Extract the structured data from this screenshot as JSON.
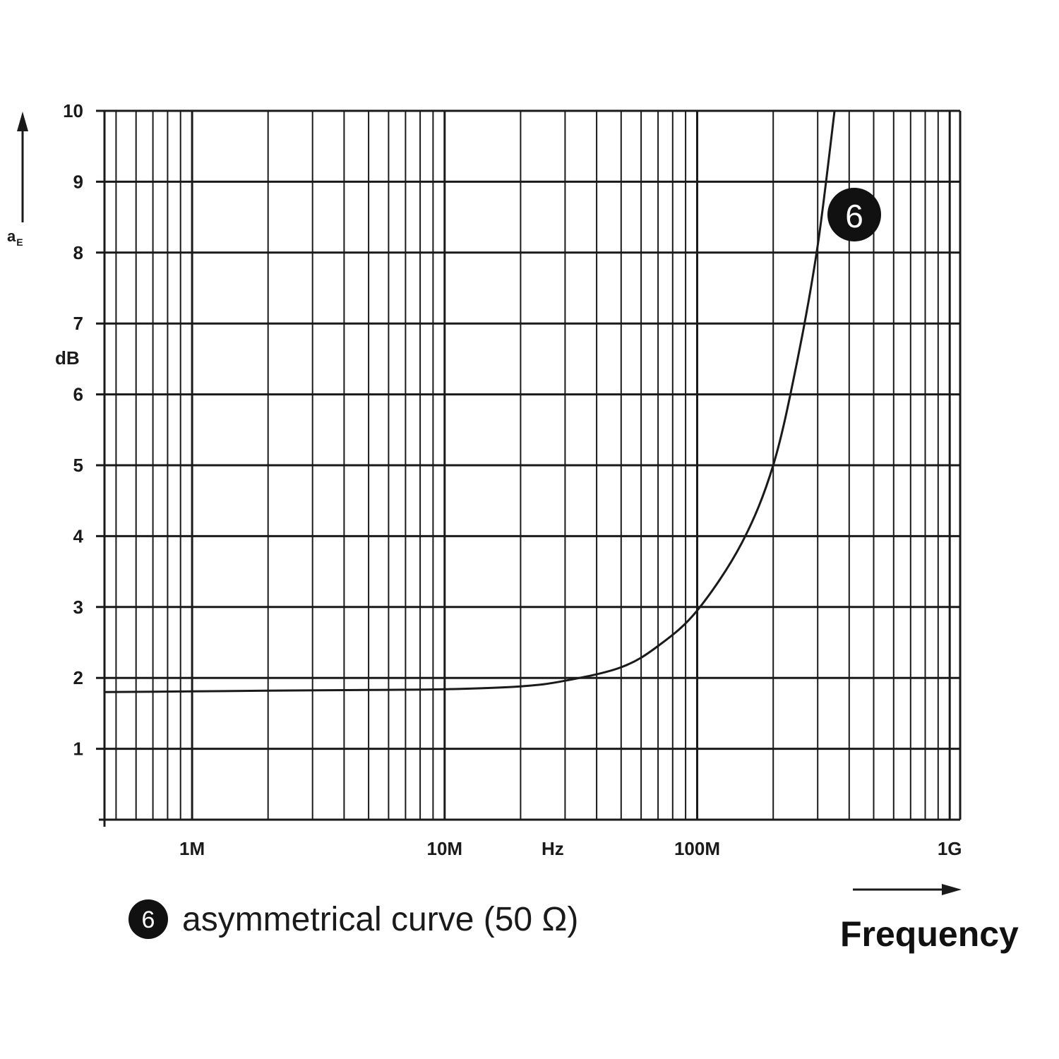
{
  "chart_data": {
    "type": "line",
    "x_scale": "log",
    "xlim": [
      "450k",
      "1.1G"
    ],
    "ylim": [
      0,
      10
    ],
    "yticks": [
      "1",
      "2",
      "3",
      "4",
      "5",
      "6",
      "7",
      "8",
      "9",
      "10"
    ],
    "xtick_labels": [
      {
        "x": "1M",
        "label": "1M"
      },
      {
        "x": "10M",
        "label": "10M"
      },
      {
        "x": "100M",
        "label": "100M"
      },
      {
        "x": "1G",
        "label": "1G"
      }
    ],
    "xunit": "Hz",
    "xlabel": "Frequency",
    "ylabel_main": "a",
    "ylabel_sub": "E",
    "yunit": "dB",
    "grid": true,
    "series": [
      {
        "name": "asymmetrical curve (50 Ω)",
        "marker": "6",
        "x": [
          "450k",
          "1M",
          "2M",
          "5M",
          "10M",
          "20M",
          "30M",
          "50M",
          "70M",
          "100M",
          "150M",
          "200M",
          "250M",
          "300M",
          "350M"
        ],
        "y": [
          1.8,
          1.81,
          1.82,
          1.83,
          1.84,
          1.88,
          1.96,
          2.15,
          2.45,
          2.95,
          3.9,
          5.0,
          6.5,
          8.1,
          10.0
        ]
      }
    ]
  },
  "legend": {
    "marker": "6",
    "label": "asymmetrical curve (50 Ω)"
  },
  "colors": {
    "ink": "#1a1a1a",
    "background": "#ffffff"
  }
}
